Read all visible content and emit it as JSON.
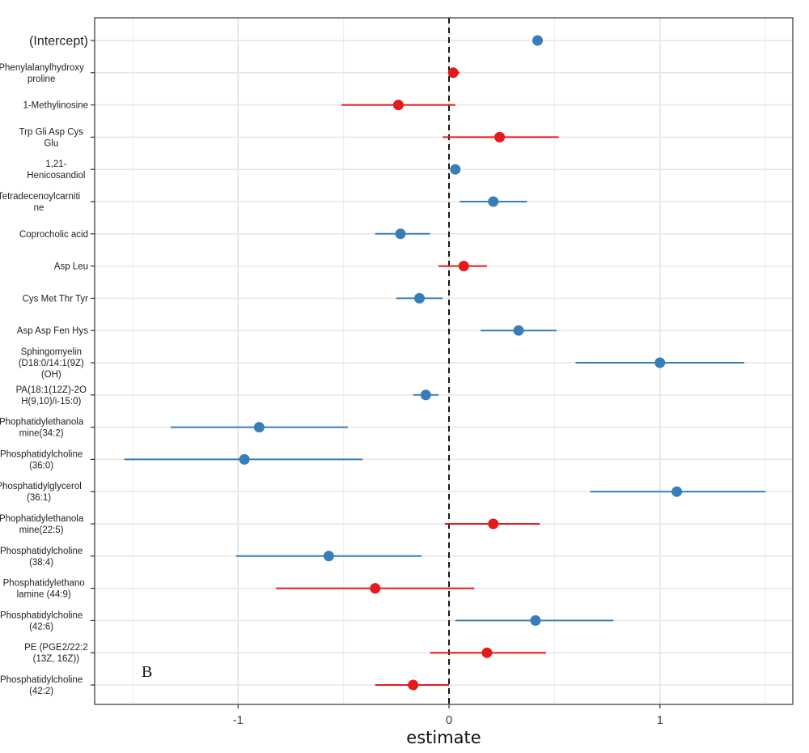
{
  "chart_data": {
    "type": "scatter",
    "subtype": "forest-plot",
    "xlabel": "estimate",
    "ylabel": "",
    "panel_label": "B",
    "xlim": [
      -1.68,
      1.63
    ],
    "xticks": [
      -1,
      0,
      1
    ],
    "xtick_labels": [
      "-1",
      "0",
      "1"
    ],
    "reference_line": 0,
    "grid": true,
    "colors": {
      "negative": "#E41A1C",
      "positive": "#377EB8",
      "reference": "#000000"
    },
    "terms": [
      {
        "label": [
          "(Intercept)"
        ],
        "estimate": 0.42,
        "low": 0.42,
        "high": 0.42,
        "group": "positive"
      },
      {
        "label": [
          "Phenylalanylhydroxy",
          "proline"
        ],
        "estimate": 0.02,
        "low": 0.0,
        "high": 0.05,
        "group": "negative"
      },
      {
        "label": [
          "1-Methylinosine"
        ],
        "estimate": -0.24,
        "low": -0.51,
        "high": 0.03,
        "group": "negative"
      },
      {
        "label": [
          "Trp Gli Asp Cys",
          "Glu"
        ],
        "estimate": 0.24,
        "low": -0.03,
        "high": 0.52,
        "group": "negative"
      },
      {
        "label": [
          "1,21-",
          "Henicosandiol"
        ],
        "estimate": 0.03,
        "low": 0.03,
        "high": 0.03,
        "group": "positive"
      },
      {
        "label": [
          "Tetradecenoylcarniti",
          "ne"
        ],
        "estimate": 0.21,
        "low": 0.05,
        "high": 0.37,
        "group": "positive"
      },
      {
        "label": [
          "Coprocholic acid"
        ],
        "estimate": -0.23,
        "low": -0.35,
        "high": -0.09,
        "group": "positive"
      },
      {
        "label": [
          "Asp Leu"
        ],
        "estimate": 0.07,
        "low": -0.05,
        "high": 0.18,
        "group": "negative"
      },
      {
        "label": [
          "Cys Met Thr Tyr"
        ],
        "estimate": -0.14,
        "low": -0.25,
        "high": -0.03,
        "group": "positive"
      },
      {
        "label": [
          "Asp Asp Fen Hys"
        ],
        "estimate": 0.33,
        "low": 0.15,
        "high": 0.51,
        "group": "positive"
      },
      {
        "label": [
          "Sphingomyelin",
          "(D18:0/14:1(9Z)",
          "(OH)"
        ],
        "estimate": 1.0,
        "low": 0.6,
        "high": 1.4,
        "group": "positive"
      },
      {
        "label": [
          "PA(18:1(12Z)-2O",
          "H(9,10)/i-15:0)"
        ],
        "estimate": -0.11,
        "low": -0.17,
        "high": -0.05,
        "group": "positive"
      },
      {
        "label": [
          "Phophatidylethanola",
          "mine(34:2)"
        ],
        "estimate": -0.9,
        "low": -1.32,
        "high": -0.48,
        "group": "positive"
      },
      {
        "label": [
          "Phosphatidylcholine",
          "(36:0)"
        ],
        "estimate": -0.97,
        "low": -1.54,
        "high": -0.41,
        "group": "positive"
      },
      {
        "label": [
          "Phosphatidylglycerol",
          "(36:1)"
        ],
        "estimate": 1.08,
        "low": 0.67,
        "high": 1.5,
        "group": "positive"
      },
      {
        "label": [
          "Phophatidylethanola",
          "mine(22:5)"
        ],
        "estimate": 0.21,
        "low": -0.02,
        "high": 0.43,
        "group": "negative"
      },
      {
        "label": [
          "Phosphatidylcholine",
          "(38:4)"
        ],
        "estimate": -0.57,
        "low": -1.01,
        "high": -0.13,
        "group": "positive"
      },
      {
        "label": [
          "Phosphatidylethano",
          "lamine (44:9)"
        ],
        "estimate": -0.35,
        "low": -0.82,
        "high": 0.12,
        "group": "negative"
      },
      {
        "label": [
          "Phosphatidylcholine",
          "(42:6)"
        ],
        "estimate": 0.41,
        "low": 0.03,
        "high": 0.78,
        "group": "positive"
      },
      {
        "label": [
          "PE (PGE2/22:2",
          "(13Z, 16Z))"
        ],
        "estimate": 0.18,
        "low": -0.09,
        "high": 0.46,
        "group": "negative"
      },
      {
        "label": [
          "Phosphatidylcholine",
          "(42:2)"
        ],
        "estimate": -0.17,
        "low": -0.35,
        "high": 0.0,
        "group": "negative"
      }
    ]
  }
}
